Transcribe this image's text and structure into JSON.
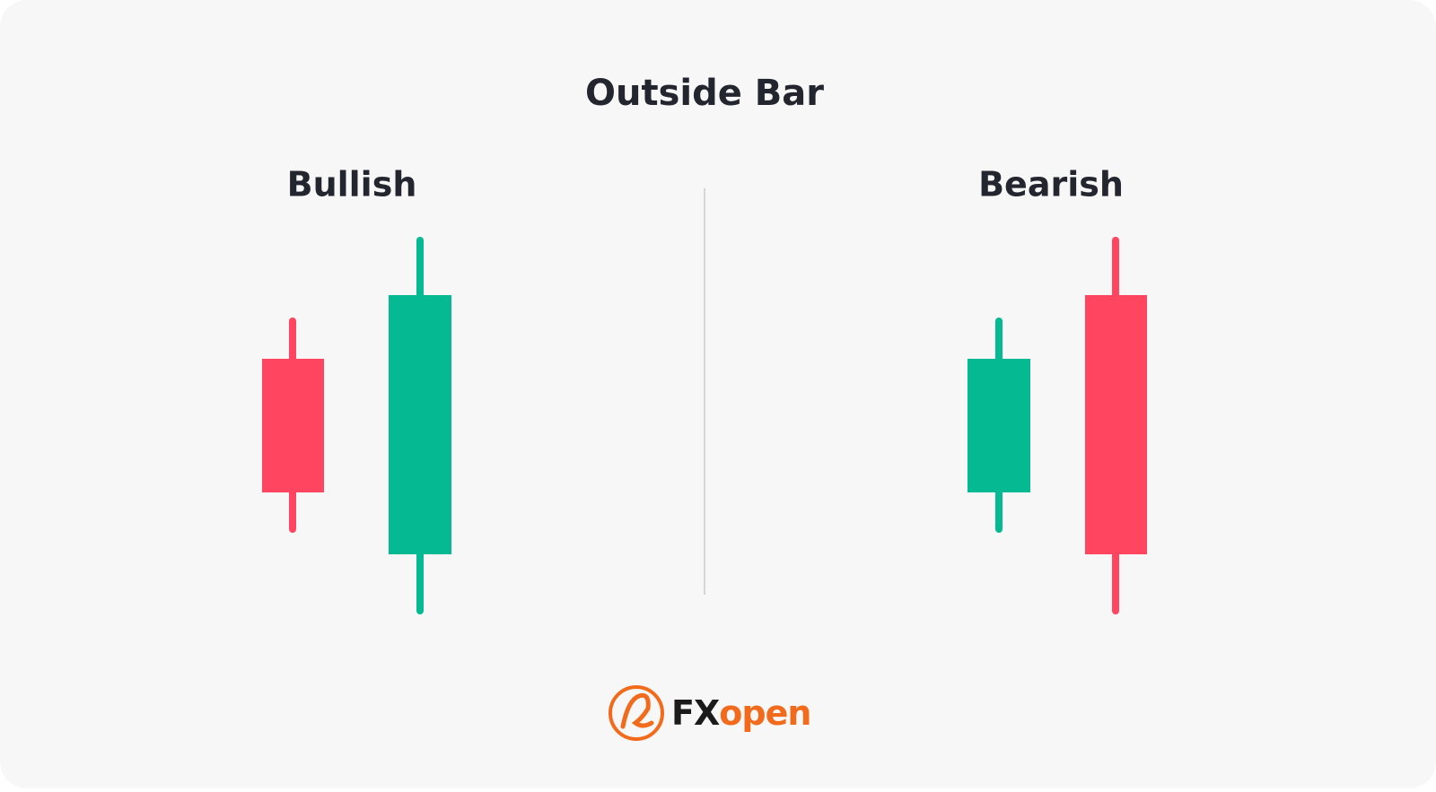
{
  "header": {
    "title": "Outside Bar"
  },
  "panels": [
    {
      "label": "Bullish"
    },
    {
      "label": "Bearish"
    }
  ],
  "logo": {
    "prefix": "FX",
    "suffix": "open"
  }
}
